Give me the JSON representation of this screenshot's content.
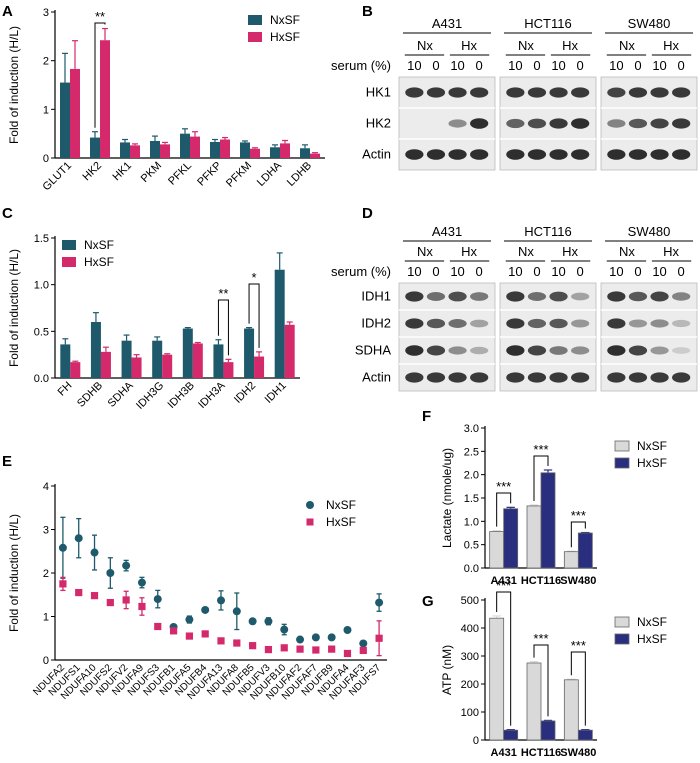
{
  "colors": {
    "nx_teal": "#1e5a6b",
    "hx_pink": "#d42a6b",
    "nx_grey": "#d9d9d9",
    "hx_navy": "#2a2e7e",
    "axis": "#000000",
    "blot_bg": "#ececec",
    "band": "#1a1a1a"
  },
  "panel_letters": {
    "A": "A",
    "B": "B",
    "C": "C",
    "D": "D",
    "E": "E",
    "F": "F",
    "G": "G"
  },
  "chart_data": [
    {
      "id": "A",
      "type": "bar",
      "ylabel": "Fold of induction (H/L)",
      "ylim": [
        0,
        3
      ],
      "yticks": [
        "0",
        "1",
        "2",
        "3"
      ],
      "categories": [
        "GLUT1",
        "HK2",
        "HK1",
        "PKM",
        "PFKL",
        "PFKP",
        "PFKM",
        "LDHA",
        "LDHB"
      ],
      "series": [
        {
          "name": "NxSF",
          "values": [
            1.55,
            0.42,
            0.32,
            0.35,
            0.5,
            0.33,
            0.32,
            0.22,
            0.2
          ],
          "err": [
            0.6,
            0.12,
            0.06,
            0.1,
            0.1,
            0.05,
            0.03,
            0.05,
            0.07
          ]
        },
        {
          "name": "HxSF",
          "values": [
            1.83,
            2.42,
            0.26,
            0.28,
            0.44,
            0.38,
            0.19,
            0.3,
            0.09
          ],
          "err": [
            0.58,
            0.24,
            0.03,
            0.04,
            0.1,
            0.04,
            0.02,
            0.06,
            0.02
          ]
        }
      ],
      "legend": [
        "NxSF",
        "HxSF"
      ],
      "legend_position": "top-right",
      "annotations": [
        {
          "text": "**",
          "category": "HK2"
        }
      ]
    },
    {
      "id": "C",
      "type": "bar",
      "ylabel": "Fold of induction (H/L)",
      "ylim": [
        0,
        1.5
      ],
      "yticks": [
        "0.0",
        "0.5",
        "1.0",
        "1.5"
      ],
      "categories": [
        "FH",
        "SDHB",
        "SDHA",
        "IDH3G",
        "IDH3B",
        "IDH3A",
        "IDH2",
        "IDH1"
      ],
      "series": [
        {
          "name": "NxSF",
          "values": [
            0.36,
            0.6,
            0.4,
            0.4,
            0.53,
            0.36,
            0.53,
            1.16
          ],
          "err": [
            0.06,
            0.1,
            0.06,
            0.04,
            0.01,
            0.05,
            0.01,
            0.18
          ]
        },
        {
          "name": "HxSF",
          "values": [
            0.17,
            0.28,
            0.22,
            0.25,
            0.37,
            0.17,
            0.23,
            0.57
          ],
          "err": [
            0.01,
            0.05,
            0.03,
            0.01,
            0.01,
            0.03,
            0.05,
            0.03
          ]
        }
      ],
      "legend": [
        "NxSF",
        "HxSF"
      ],
      "legend_position": "top-left",
      "annotations": [
        {
          "text": "**",
          "category": "IDH3A"
        },
        {
          "text": "*",
          "category": "IDH2"
        }
      ]
    },
    {
      "id": "E",
      "type": "scatter",
      "ylabel": "Fold of induction (H/L)",
      "ylim": [
        0,
        4
      ],
      "yticks": [
        "0",
        "1",
        "2",
        "3",
        "4"
      ],
      "categories": [
        "NDUFA2",
        "NDUFS1",
        "NDUFA10",
        "NDUFS2",
        "NDUFV2",
        "NDUFA9",
        "NDUFS3",
        "NDUFB1",
        "NDUFA5",
        "NDUFB4",
        "NDUFA13",
        "NDUFA8",
        "NDUFB5",
        "NDUFV3",
        "NDUFB10",
        "NDUFAF2",
        "NDUFAF7",
        "NDUFB9",
        "NDUFA4",
        "NDUFAF3",
        "NDUFS7"
      ],
      "series": [
        {
          "name": "NxSF",
          "values": [
            2.58,
            2.8,
            2.47,
            2.0,
            2.17,
            1.78,
            1.4,
            0.76,
            0.93,
            1.15,
            1.37,
            1.12,
            0.89,
            0.89,
            0.7,
            0.47,
            0.52,
            0.52,
            0.69,
            0.38,
            1.32
          ],
          "err": [
            0.7,
            0.45,
            0.4,
            0.35,
            0.12,
            0.12,
            0.2,
            0.02,
            0.08,
            0.02,
            0.22,
            0.42,
            0.06,
            0.08,
            0.12,
            0.02,
            0.02,
            0.02,
            0.02,
            0.02,
            0.2
          ]
        },
        {
          "name": "HxSF",
          "values": [
            1.75,
            1.55,
            1.48,
            1.32,
            1.38,
            1.23,
            0.77,
            0.67,
            0.55,
            0.6,
            0.44,
            0.39,
            0.33,
            0.24,
            0.28,
            0.25,
            0.23,
            0.25,
            0.15,
            0.22,
            0.5
          ],
          "err": [
            0.15,
            0.02,
            0.02,
            0.02,
            0.2,
            0.2,
            0.02,
            0.02,
            0.02,
            0.02,
            0.02,
            0.02,
            0.02,
            0.02,
            0.02,
            0.02,
            0.02,
            0.02,
            0.02,
            0.02,
            0.4
          ]
        }
      ],
      "legend": [
        "NxSF",
        "HxSF"
      ],
      "legend_position": "top-right"
    },
    {
      "id": "F",
      "type": "bar",
      "ylabel": "Lactate (nmole/ug)",
      "ylim": [
        0,
        3
      ],
      "yticks": [
        "0.0",
        "0.5",
        "1.0",
        "1.5",
        "2.0",
        "2.5",
        "3.0"
      ],
      "categories": [
        "A431",
        "HCT116",
        "SW480"
      ],
      "series": [
        {
          "name": "NxSF",
          "values": [
            0.78,
            1.33,
            0.35
          ],
          "err": [
            0.02,
            0.02,
            0.01
          ]
        },
        {
          "name": "HxSF",
          "values": [
            1.27,
            2.04,
            0.75
          ],
          "err": [
            0.03,
            0.06,
            0.01
          ]
        }
      ],
      "legend": [
        "NxSF",
        "HxSF"
      ],
      "legend_position": "top-right",
      "annotations": [
        {
          "text": "***",
          "category": "A431"
        },
        {
          "text": "***",
          "category": "HCT116"
        },
        {
          "text": "***",
          "category": "SW480"
        }
      ]
    },
    {
      "id": "G",
      "type": "bar",
      "ylabel": "ATP (nM)",
      "ylim": [
        0,
        500
      ],
      "yticks": [
        "0",
        "100",
        "200",
        "300",
        "400",
        "500"
      ],
      "categories": [
        "A431",
        "HCT116",
        "SW480"
      ],
      "series": [
        {
          "name": "NxSF",
          "values": [
            435,
            275,
            215
          ],
          "err": [
            8,
            5,
            2
          ]
        },
        {
          "name": "HxSF",
          "values": [
            35,
            68,
            35
          ],
          "err": [
            2,
            2,
            2
          ]
        }
      ],
      "legend": [
        "NxSF",
        "HxSF"
      ],
      "legend_position": "top-right",
      "annotations": [
        {
          "text": "***",
          "category": "A431"
        },
        {
          "text": "***",
          "category": "HCT116"
        },
        {
          "text": "***",
          "category": "SW480"
        }
      ]
    }
  ],
  "blots": [
    {
      "id": "B",
      "cell_lines": [
        "A431",
        "HCT116",
        "SW480"
      ],
      "conditions": [
        "Nx",
        "Hx"
      ],
      "serum_label": "serum (%)",
      "lanes": [
        "10",
        "0",
        "10",
        "0"
      ],
      "rows": [
        {
          "label": "HK1",
          "int": [
            [
              0.85,
              0.85,
              0.85,
              0.85
            ],
            [
              0.85,
              0.85,
              0.85,
              0.85
            ],
            [
              0.8,
              0.85,
              0.85,
              0.85
            ]
          ]
        },
        {
          "label": "HK2",
          "int": [
            [
              0,
              0,
              0.45,
              0.9
            ],
            [
              0.65,
              0.75,
              0.85,
              0.9
            ],
            [
              0.5,
              0.7,
              0.8,
              0.85
            ]
          ]
        },
        {
          "label": "Actin",
          "int": [
            [
              0.9,
              0.9,
              0.9,
              0.9
            ],
            [
              0.9,
              0.9,
              0.9,
              0.9
            ],
            [
              0.9,
              0.9,
              0.9,
              0.9
            ]
          ]
        }
      ]
    },
    {
      "id": "D",
      "cell_lines": [
        "A431",
        "HCT116",
        "SW480"
      ],
      "conditions": [
        "Nx",
        "Hx"
      ],
      "serum_label": "serum (%)",
      "lanes": [
        "10",
        "0",
        "10",
        "0"
      ],
      "rows": [
        {
          "label": "IDH1",
          "int": [
            [
              0.85,
              0.6,
              0.75,
              0.55
            ],
            [
              0.85,
              0.6,
              0.75,
              0.35
            ],
            [
              0.85,
              0.7,
              0.8,
              0.5
            ]
          ]
        },
        {
          "label": "IDH2",
          "int": [
            [
              0.85,
              0.7,
              0.6,
              0.35
            ],
            [
              0.85,
              0.65,
              0.7,
              0.4
            ],
            [
              0.85,
              0.4,
              0.45,
              0.25
            ]
          ]
        },
        {
          "label": "SDHA",
          "int": [
            [
              0.9,
              0.8,
              0.45,
              0.3
            ],
            [
              0.9,
              0.8,
              0.55,
              0.45
            ],
            [
              0.9,
              0.8,
              0.4,
              0.15
            ]
          ]
        },
        {
          "label": "Actin",
          "int": [
            [
              0.85,
              0.85,
              0.85,
              0.85
            ],
            [
              0.85,
              0.85,
              0.85,
              0.85
            ],
            [
              0.85,
              0.85,
              0.85,
              0.85
            ]
          ]
        }
      ]
    }
  ]
}
